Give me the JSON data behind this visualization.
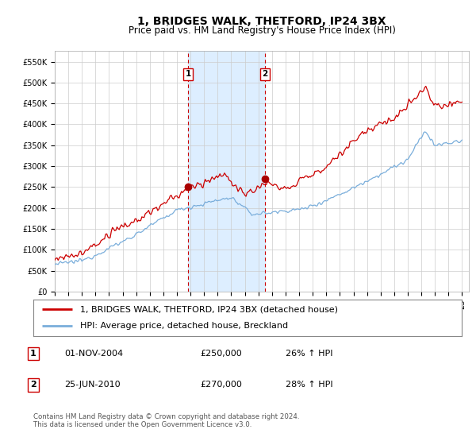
{
  "title": "1, BRIDGES WALK, THETFORD, IP24 3BX",
  "subtitle": "Price paid vs. HM Land Registry's House Price Index (HPI)",
  "ylim": [
    0,
    575000
  ],
  "yticks": [
    0,
    50000,
    100000,
    150000,
    200000,
    250000,
    300000,
    350000,
    400000,
    450000,
    500000,
    550000
  ],
  "ytick_labels": [
    "£0",
    "£50K",
    "£100K",
    "£150K",
    "£200K",
    "£250K",
    "£300K",
    "£350K",
    "£400K",
    "£450K",
    "£500K",
    "£550K"
  ],
  "hpi_color": "#7aaedb",
  "price_color": "#cc0000",
  "marker_color": "#aa0000",
  "bg_color": "#ffffff",
  "grid_color": "#cccccc",
  "shade_color": "#ddeeff",
  "legend_label_price": "1, BRIDGES WALK, THETFORD, IP24 3BX (detached house)",
  "legend_label_hpi": "HPI: Average price, detached house, Breckland",
  "purchase1_date": 2004.83,
  "purchase1_price": 250000,
  "purchase1_label": "1",
  "purchase1_text": "01-NOV-2004",
  "purchase1_amount": "£250,000",
  "purchase1_pct": "26% ↑ HPI",
  "purchase2_date": 2010.48,
  "purchase2_price": 270000,
  "purchase2_label": "2",
  "purchase2_text": "25-JUN-2010",
  "purchase2_amount": "£270,000",
  "purchase2_pct": "28% ↑ HPI",
  "footer": "Contains HM Land Registry data © Crown copyright and database right 2024.\nThis data is licensed under the Open Government Licence v3.0.",
  "title_fontsize": 10,
  "subtitle_fontsize": 8.5,
  "tick_fontsize": 7,
  "legend_fontsize": 8,
  "table_fontsize": 8
}
